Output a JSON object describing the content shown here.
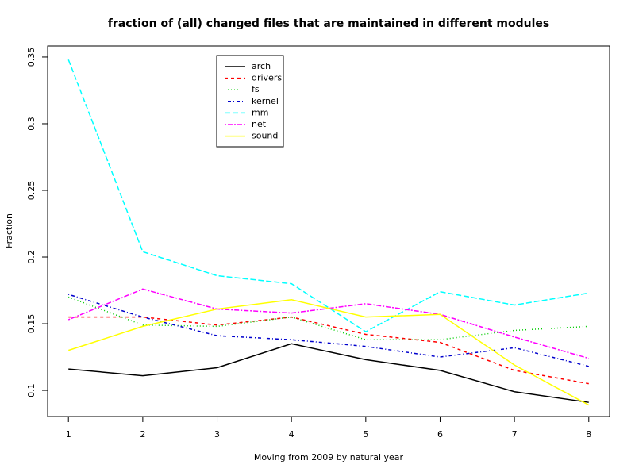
{
  "chart_data": {
    "type": "line",
    "title": "fraction of (all) changed files that are maintained in different modules",
    "xlabel": "Moving from 2009 by natural year",
    "ylabel": "Fraction",
    "x": [
      1,
      2,
      3,
      4,
      5,
      6,
      7,
      8
    ],
    "xlim": [
      0.72,
      8.28
    ],
    "xticks": [
      1,
      2,
      3,
      4,
      5,
      6,
      7,
      8
    ],
    "ylim": [
      0.0804,
      0.3583
    ],
    "yticks": [
      0.1,
      0.15,
      0.2,
      0.25,
      0.3,
      0.35
    ],
    "series": [
      {
        "name": "arch",
        "color": "#000000",
        "dash": "solid",
        "values": [
          0.116,
          0.111,
          0.117,
          0.135,
          0.123,
          0.115,
          0.099,
          0.091
        ]
      },
      {
        "name": "drivers",
        "color": "#ff0000",
        "dash": "dashed",
        "values": [
          0.155,
          0.155,
          0.149,
          0.155,
          0.142,
          0.136,
          0.115,
          0.105
        ]
      },
      {
        "name": "fs",
        "color": "#00cd00",
        "dash": "dotted",
        "values": [
          0.17,
          0.149,
          0.148,
          0.155,
          0.138,
          0.138,
          0.145,
          0.148
        ]
      },
      {
        "name": "kernel",
        "color": "#0000cd",
        "dash": "dotdash",
        "values": [
          0.172,
          0.155,
          0.141,
          0.138,
          0.133,
          0.125,
          0.132,
          0.118
        ]
      },
      {
        "name": "mm",
        "color": "#00ffff",
        "dash": "longdash",
        "values": [
          0.348,
          0.204,
          0.186,
          0.18,
          0.144,
          0.174,
          0.164,
          0.173
        ]
      },
      {
        "name": "net",
        "color": "#ff00ff",
        "dash": "twodash",
        "values": [
          0.153,
          0.176,
          0.161,
          0.158,
          0.165,
          0.157,
          0.14,
          0.124
        ]
      },
      {
        "name": "sound",
        "color": "#ffff00",
        "dash": "solid",
        "values": [
          0.13,
          0.148,
          0.161,
          0.168,
          0.155,
          0.157,
          0.119,
          0.089
        ]
      }
    ]
  }
}
